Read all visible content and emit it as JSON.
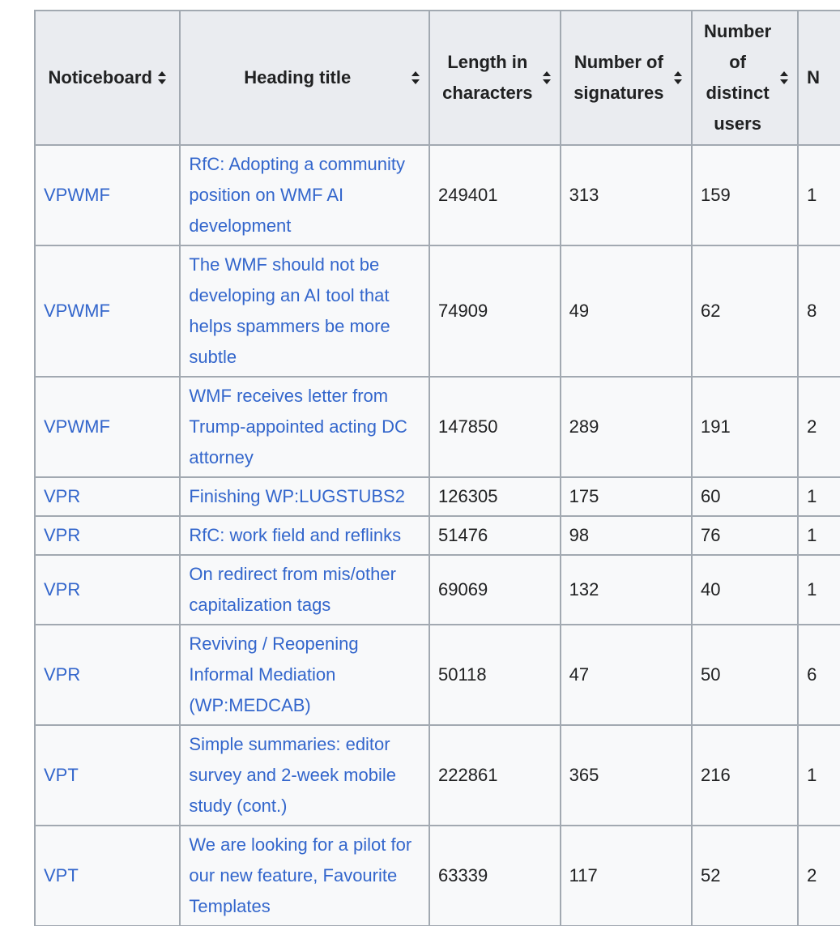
{
  "columns": [
    {
      "label": "Noticeboard"
    },
    {
      "label": "Heading title"
    },
    {
      "label": "Length in characters"
    },
    {
      "label": "Number of signatures"
    },
    {
      "label": "Number of distinct users"
    },
    {
      "label": "N"
    }
  ],
  "rows": [
    {
      "board": "VPWMF",
      "title": "RfC: Adopting a community position on WMF AI development",
      "length": "249401",
      "signatures": "313",
      "users": "159",
      "next": "1"
    },
    {
      "board": "VPWMF",
      "title": "The WMF should not be developing an AI tool that helps spammers be more subtle",
      "length": "74909",
      "signatures": "49",
      "users": "62",
      "next": "8"
    },
    {
      "board": "VPWMF",
      "title": "WMF receives letter from Trump-appointed acting DC attorney",
      "length": "147850",
      "signatures": "289",
      "users": "191",
      "next": "2"
    },
    {
      "board": "VPR",
      "title": "Finishing WP:LUGSTUBS2",
      "length": "126305",
      "signatures": "175",
      "users": "60",
      "next": "1"
    },
    {
      "board": "VPR",
      "title": "RfC: work field and reflinks",
      "length": "51476",
      "signatures": "98",
      "users": "76",
      "next": "1"
    },
    {
      "board": "VPR",
      "title": "On redirect from mis/other capitalization tags",
      "length": "69069",
      "signatures": "132",
      "users": "40",
      "next": "1"
    },
    {
      "board": "VPR",
      "title": "Reviving / Reopening Informal Mediation (WP:MEDCAB)",
      "length": "50118",
      "signatures": "47",
      "users": "50",
      "next": "6"
    },
    {
      "board": "VPT",
      "title": "Simple summaries: editor survey and 2-week mobile study (cont.)",
      "length": "222861",
      "signatures": "365",
      "users": "216",
      "next": "1"
    },
    {
      "board": "VPT",
      "title": "We are looking for a pilot for our new feature, Favourite Templates",
      "length": "63339",
      "signatures": "117",
      "users": "52",
      "next": "2"
    }
  ],
  "icons": {
    "sort": "sort-icon"
  },
  "colors": {
    "link": "#3366cc",
    "header_bg": "#eaecf0",
    "cell_bg": "#f8f9fa",
    "border": "#a2a9b1"
  }
}
